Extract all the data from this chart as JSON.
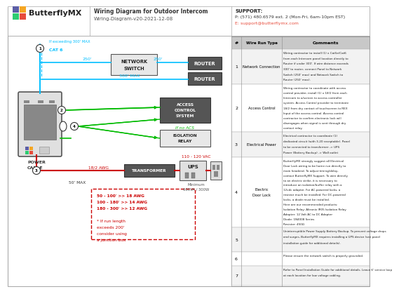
{
  "title": "Wiring Diagram for Outdoor Intercom",
  "subtitle": "Wiring-Diagram-v20-2021-12-08",
  "support_text": "SUPPORT:",
  "support_phone": "P: (571) 480.6579 ext. 2 (Mon-Fri, 6am-10pm EST)",
  "support_email": "E: support@butterflymx.com",
  "logo_text": "ButterflyMX",
  "bg_color": "#ffffff",
  "blue_wire": "#00bfff",
  "green_wire": "#00bb00",
  "red_wire": "#cc0000",
  "table_data": [
    {
      "num": "1",
      "type": "Network Connection",
      "comment": "Wiring contractor to install (1) x Cat5e/Cat6\nfrom each Intercom panel location directly to\nRouter if under 300'. If wire distance exceeds\n300' to router, connect Panel to Network\nSwitch (250' max) and Network Switch to\nRouter (250' max)."
    },
    {
      "num": "2",
      "type": "Access Control",
      "comment": "Wiring contractor to coordinate with access\ncontrol provider, install (1) x 18/2 from each\nIntercom to a/screen to access controller\nsystem. Access Control provider to terminate\n18/2 from dry contact of touchscreen to REX\nInput of the access control. Access control\ncontractor to confirm electronic lock will\ndisengages when signal is sent through dry\ncontact relay."
    },
    {
      "num": "3",
      "type": "Electrical Power",
      "comment": "Electrical contractor to coordinate (1)\ndedicated circuit (with 3-20 receptable). Panel\nto be connected to transformer -> UPS\nPower (Battery Backup) -> Wall outlet"
    },
    {
      "num": "4",
      "type": "Electric Door Lock",
      "comment": "ButterflyMX strongly suggest all Electrical\nDoor Lock wiring to be home run directly to\nmain headend. To adjust timing/delay,\ncontact ButterflyMX Support. To wire directly\nto an electric strike, it is necessary to\nintroduce an isolation/buffer relay with a\n12vdc adapter. For AC-powered locks, a\nresistor much be installed. For DC-powered\nlocks, a diode must be installed.\nHere are our recommended products:\nIsolation Relay: Altronix IR05 Isolation Relay\nAdapter: 12 Volt AC to DC Adapter\nDiode: 1N4008 Series\nResistor: 450Ω"
    },
    {
      "num": "5",
      "type": "",
      "comment": "Uninterruptible Power Supply Battery Backup. To prevent voltage drops\nand surges, ButterflyMX requires installing a UPS device (see panel\ninstallation guide for additional details)."
    },
    {
      "num": "6",
      "type": "",
      "comment": "Please ensure the network switch is properly grounded."
    },
    {
      "num": "7",
      "type": "",
      "comment": "Refer to Panel Installation Guide for additional details. Leave 6' service loop\nat each location for low voltage cabling."
    }
  ]
}
